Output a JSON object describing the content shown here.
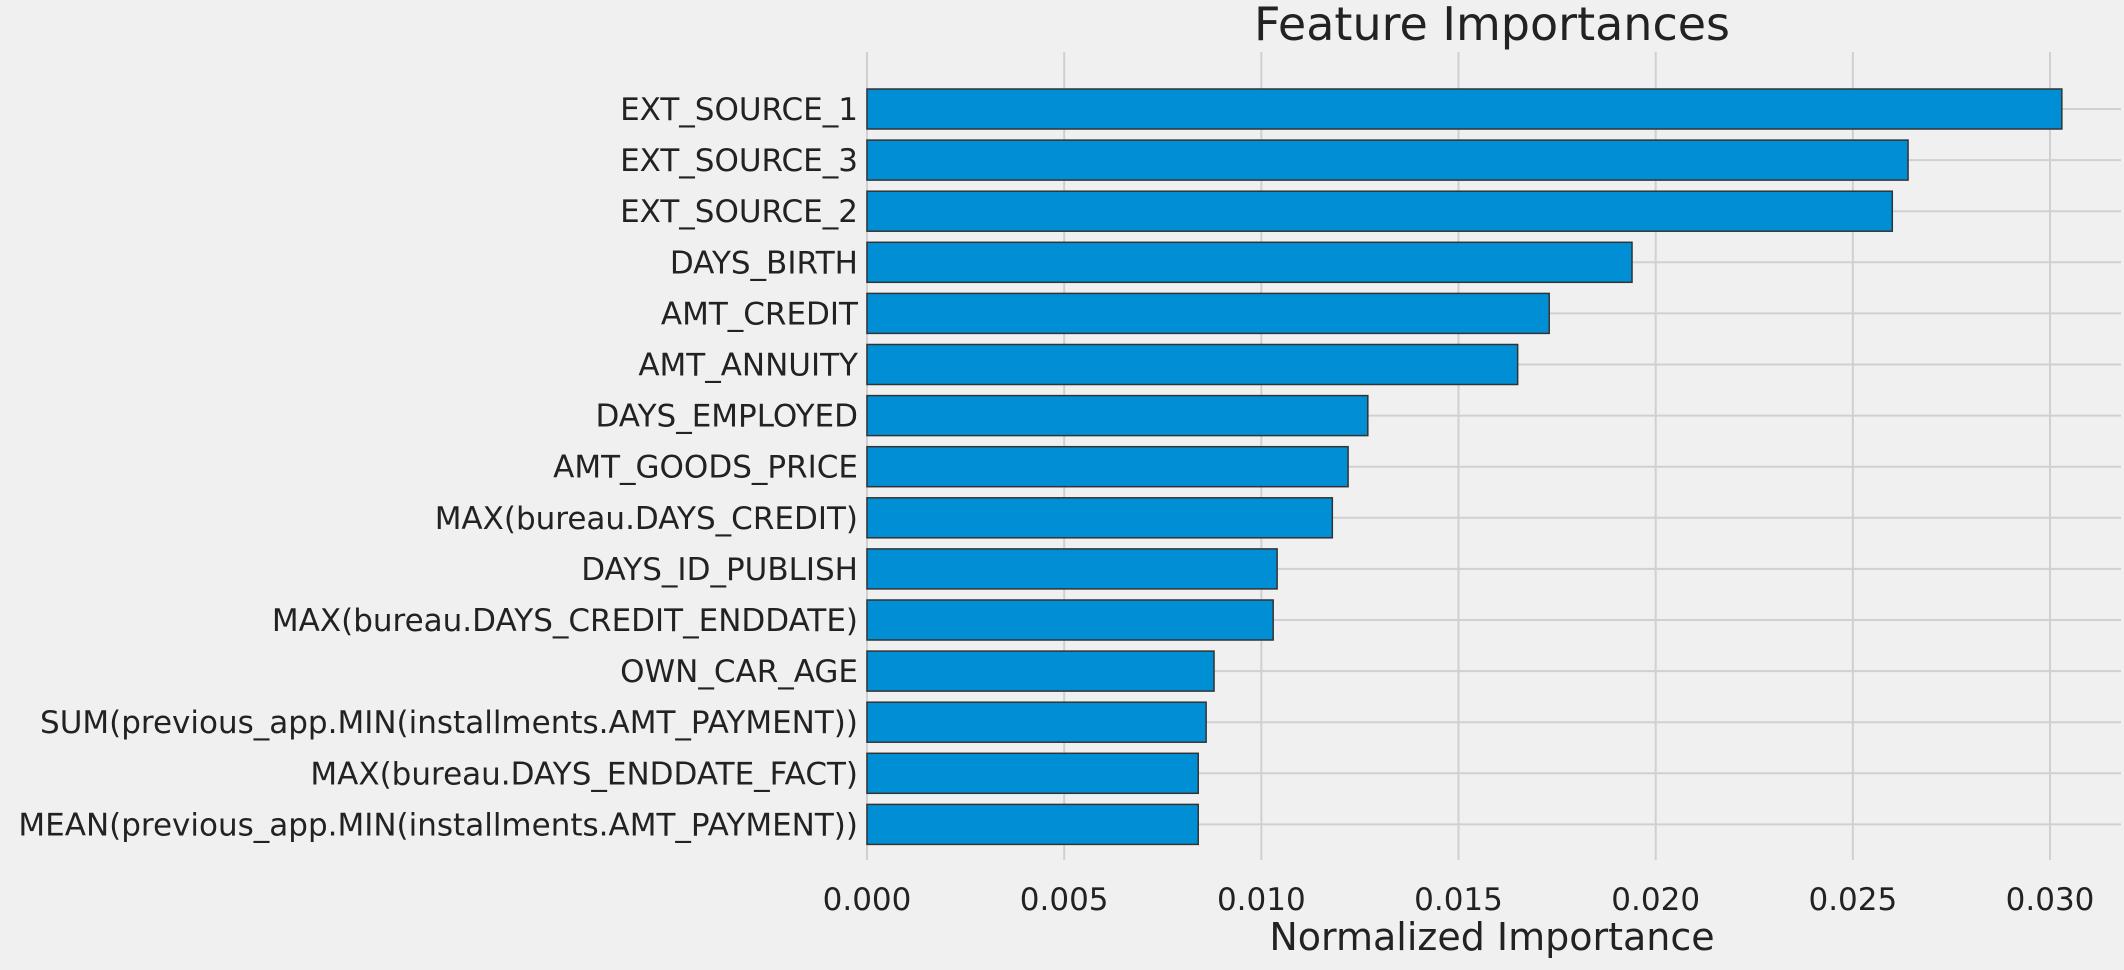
{
  "chart_data": {
    "type": "bar",
    "orientation": "horizontal",
    "title": "Feature Importances",
    "xlabel": "Normalized Importance",
    "ylabel": "",
    "xlim": [
      0,
      0.0318
    ],
    "xticks": [
      "0.000",
      "0.005",
      "0.010",
      "0.015",
      "0.020",
      "0.025",
      "0.030"
    ],
    "grid": true,
    "bar_color": "#008fd5",
    "bar_edge_color": "#333333",
    "categories": [
      "EXT_SOURCE_1",
      "EXT_SOURCE_3",
      "EXT_SOURCE_2",
      "DAYS_BIRTH",
      "AMT_CREDIT",
      "AMT_ANNUITY",
      "DAYS_EMPLOYED",
      "AMT_GOODS_PRICE",
      "MAX(bureau.DAYS_CREDIT)",
      "DAYS_ID_PUBLISH",
      "MAX(bureau.DAYS_CREDIT_ENDDATE)",
      "OWN_CAR_AGE",
      "SUM(previous_app.MIN(installments.AMT_PAYMENT))",
      "MAX(bureau.DAYS_ENDDATE_FACT)",
      "MEAN(previous_app.MIN(installments.AMT_PAYMENT))"
    ],
    "values": [
      0.0303,
      0.0264,
      0.026,
      0.0194,
      0.0173,
      0.0165,
      0.0127,
      0.0122,
      0.0118,
      0.0104,
      0.0103,
      0.0088,
      0.0086,
      0.0084,
      0.0084
    ]
  }
}
